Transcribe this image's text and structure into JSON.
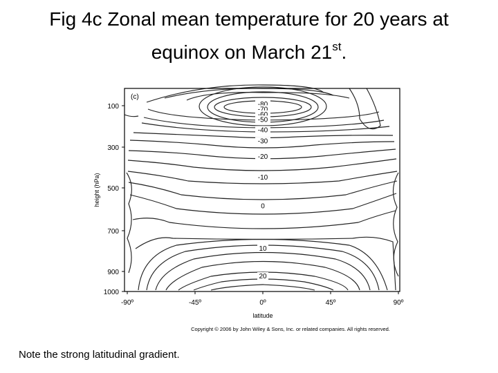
{
  "slide": {
    "title_line1": "Fig 4c Zonal mean temperature for 20 years at",
    "title_line2_main": "equinox on March 21",
    "title_line2_sup": "st",
    "title_line2_end": ".",
    "note": "Note the strong latitudinal gradient."
  },
  "chart_data": {
    "type": "contour",
    "panel_label": "(c)",
    "xlabel": "latitude",
    "ylabel": "height (hPa)",
    "x_ticks": [
      "-90º",
      "-45º",
      "0º",
      "45º",
      "90º"
    ],
    "y_ticks": [
      "100",
      "300",
      "500",
      "700",
      "900",
      "1000"
    ],
    "xlim": [
      -90,
      90
    ],
    "ylim": [
      1000,
      50
    ],
    "contour_labels": [
      {
        "text": "-80",
        "lat": 0,
        "p": 100
      },
      {
        "text": "-70",
        "lat": 0,
        "p": 125
      },
      {
        "text": "-60",
        "lat": 0,
        "p": 150
      },
      {
        "text": "-50",
        "lat": 0,
        "p": 175
      },
      {
        "text": "-40",
        "lat": 0,
        "p": 225
      },
      {
        "text": "-30",
        "lat": 0,
        "p": 280
      },
      {
        "text": "-20",
        "lat": 0,
        "p": 355
      },
      {
        "text": "-10",
        "lat": 0,
        "p": 455
      },
      {
        "text": "0",
        "lat": 0,
        "p": 595
      },
      {
        "text": "10",
        "lat": 0,
        "p": 800
      },
      {
        "text": "20",
        "lat": 0,
        "p": 935
      }
    ],
    "copyright": "Copyright © 2006 by John Wiley & Sons, Inc. or related companies. All rights reserved."
  }
}
